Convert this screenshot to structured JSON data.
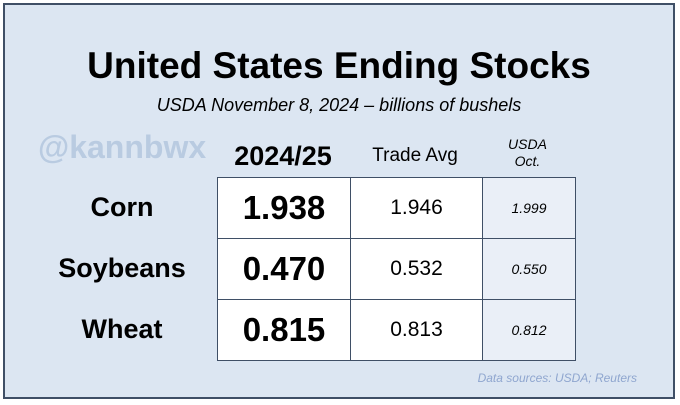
{
  "watermark": "@kannbwx",
  "chart_data": {
    "type": "table",
    "title": "United States Ending Stocks",
    "subtitle": "USDA November 8, 2024 – billions of bushels",
    "columns": [
      "2024/25",
      "Trade Avg",
      "USDA",
      "Oct."
    ],
    "rows": [
      {
        "label": "Corn",
        "values": [
          "1.938",
          "1.946",
          "1.999"
        ]
      },
      {
        "label": "Soybeans",
        "values": [
          "0.470",
          "0.532",
          "0.550"
        ]
      },
      {
        "label": "Wheat",
        "values": [
          "0.815",
          "0.813",
          "0.812"
        ]
      }
    ],
    "source": "Data sources: USDA; Reuters"
  },
  "colors": {
    "panel_background": "#dce6f2",
    "border": "#3f4f66",
    "usda_column": "#eaeff7",
    "watermark": "#b9cbe1",
    "source_text": "#8fa6cf"
  }
}
